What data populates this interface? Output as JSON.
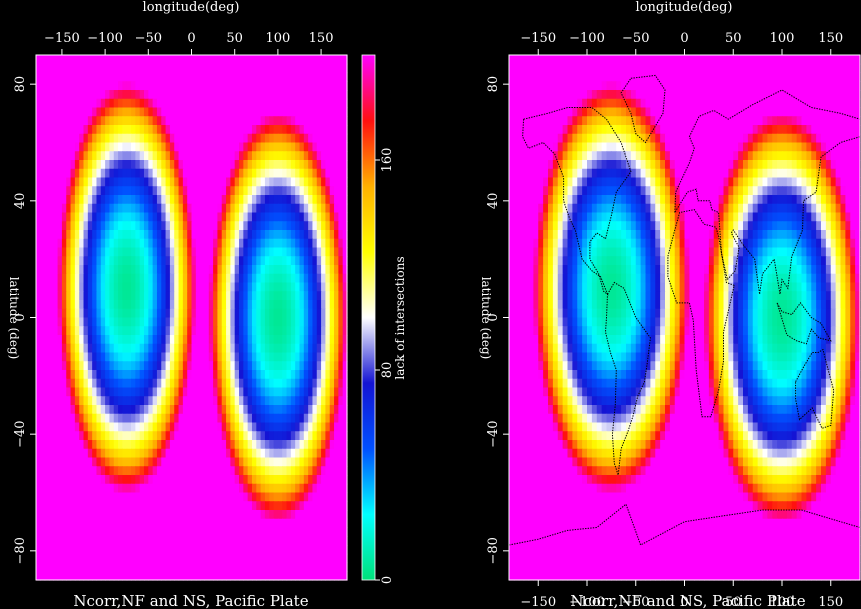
{
  "chart_data": [
    {
      "type": "heatmap",
      "title": "longitude(deg)",
      "xlabel": "longitude(deg)",
      "ylabel": "latitude (deg)",
      "xlim": [
        -180,
        180
      ],
      "ylim": [
        -90,
        90
      ],
      "x_ticks": [
        -150,
        -100,
        -50,
        0,
        50,
        100,
        150
      ],
      "x_tick_labels": [
        "−150",
        "−100",
        "−50",
        "0",
        "50",
        "100",
        "150"
      ],
      "y_ticks": [
        80,
        40,
        0,
        -40,
        -80
      ],
      "y_tick_labels": [
        "80",
        "40",
        "0",
        "−40",
        "−80"
      ],
      "caption": "Ncorr,NF and NS, Pacific Plate",
      "minima": [
        {
          "lon": -75,
          "lat": 10,
          "value": 5
        },
        {
          "lon": 100,
          "lat": 0,
          "value": 5
        }
      ],
      "colorbar": {
        "label": "lack of intersections",
        "range": [
          0,
          200
        ],
        "ticks": [
          0,
          80,
          160
        ],
        "tick_labels": [
          "0",
          "80",
          "160"
        ],
        "colors": [
          "#00e27a",
          "#00ffff",
          "#0050ff",
          "#1414d4",
          "#ffffff",
          "#ffff00",
          "#ffb000",
          "#ff1010",
          "#ff00ff"
        ]
      }
    },
    {
      "type": "heatmap",
      "title": "longitude(deg)",
      "xlabel": "longitude(deg)",
      "ylabel": "latitude (deg)",
      "xlim": [
        -180,
        180
      ],
      "ylim": [
        -90,
        90
      ],
      "x_ticks": [
        -150,
        -100,
        -50,
        0,
        50,
        100,
        150
      ],
      "x_tick_labels": [
        "−150",
        "−100",
        "−50",
        "0",
        "50",
        "100",
        "150"
      ],
      "y_ticks": [
        80,
        40,
        0,
        -40,
        -80
      ],
      "y_tick_labels": [
        "80",
        "40",
        "0",
        "−40",
        "−80"
      ],
      "caption": "Ncorr,NF and NS, Pacific Plate",
      "overlay": "world coastlines",
      "minima": [
        {
          "lon": -75,
          "lat": 10,
          "value": 5
        },
        {
          "lon": 100,
          "lat": 0,
          "value": 5
        }
      ]
    }
  ]
}
